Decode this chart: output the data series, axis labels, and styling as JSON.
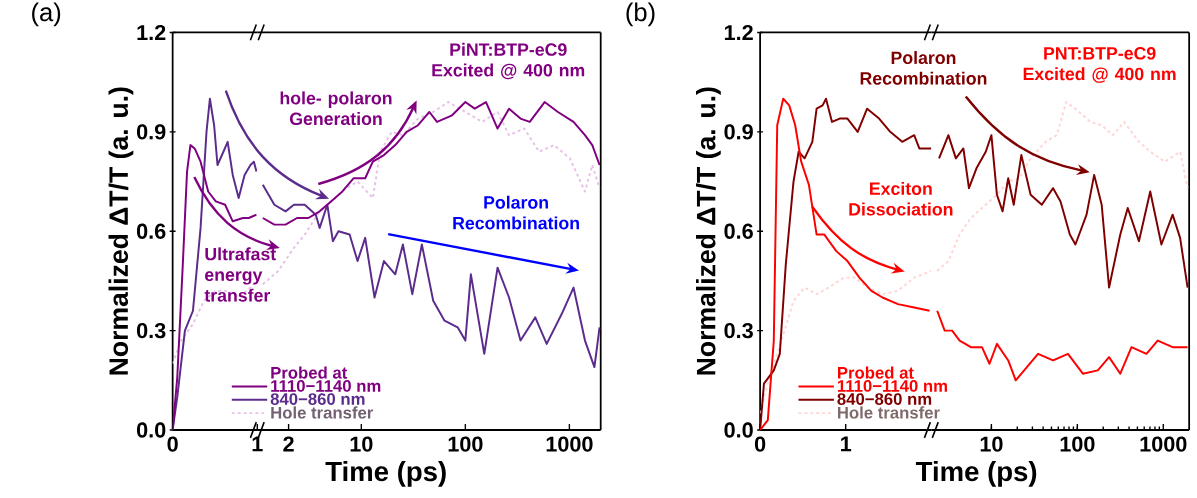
{
  "chart_data": [
    {
      "type": "line",
      "title": "(a)",
      "ylabel": "Normalized ΔT/T (a. u.)",
      "xlim": [
        0,
        1
      ],
      "ylim": [
        0,
        1.2
      ],
      "xticks": [
        0,
        1
      ],
      "yticks": [
        {
          "value": 0,
          "label": "0.0"
        },
        0.3,
        0.6,
        0.9,
        1.2
      ],
      "legend": "bottom",
      "legend_title": "Probed at",
      "series": [
        {
          "name": "1110−1140 nm",
          "color": "#800080",
          "x": [
            0,
            0.055,
            0.12,
            0.17,
            0.21,
            0.26,
            0.33,
            0.42,
            0.51,
            0.62,
            0.71,
            0.83,
            0.9,
            0.99
          ],
          "values": [
            0,
            0.16,
            0.5,
            0.78,
            0.86,
            0.85,
            0.81,
            0.72,
            0.69,
            0.68,
            0.63,
            0.64,
            0.64,
            0.65
          ]
        },
        {
          "name": "840−860 nm",
          "color": "#5b2c8c",
          "x": [
            0,
            0.055,
            0.145,
            0.24,
            0.33,
            0.4,
            0.44,
            0.49,
            0.53,
            0.6,
            0.65,
            0.71,
            0.78,
            0.85,
            0.92,
            0.96,
            0.99
          ],
          "values": [
            0,
            0.1,
            0.3,
            0.36,
            0.61,
            0.9,
            1.0,
            0.92,
            0.8,
            0.84,
            0.87,
            0.77,
            0.7,
            0.77,
            0.8,
            0.81,
            0.78
          ]
        },
        {
          "name": "Hole transfer",
          "color": "#e6c3e6",
          "line_style": "dashed",
          "x": [
            0,
            0.1,
            0.24,
            0.37,
            0.51,
            0.65,
            0.78,
            0.92,
            0.99
          ],
          "values": [
            0.2,
            0.27,
            0.32,
            0.39,
            0.42,
            0.42,
            0.4,
            0.43,
            0.45
          ]
        }
      ]
    },
    {
      "type": "line",
      "xlabel": "Time (ps)",
      "log": "x",
      "xlim": [
        1,
        2000
      ],
      "ylim": [
        0,
        1.2
      ],
      "xticks": [
        2,
        10,
        100,
        1000
      ],
      "tick_labels": "x",
      "annotations": [
        "PiNT:BTP-eC9 Excited @ 400 nm",
        "hole- polaron Generation",
        "Ultrafast energy transfer",
        "Polaron Recombination"
      ],
      "series": [
        {
          "color": "#800080",
          "x": [
            1.13,
            1.46,
            1.87,
            2.41,
            3.1,
            3.98,
            5.12,
            6.58,
            8.45,
            10.9,
            12.9,
            16.5,
            21.2,
            27.3,
            35.1,
            45.1,
            53.4,
            74.6,
            100,
            123,
            158,
            204,
            263,
            339,
            416,
            578,
            776,
            1096,
            1412,
            1660,
            1950
          ],
          "values": [
            0.64,
            0.62,
            0.62,
            0.64,
            0.64,
            0.66,
            0.69,
            0.72,
            0.76,
            0.76,
            0.81,
            0.83,
            0.86,
            0.9,
            0.92,
            0.96,
            0.93,
            0.95,
            0.99,
            0.97,
            0.99,
            0.91,
            0.97,
            0.94,
            0.93,
            0.99,
            0.96,
            0.93,
            0.89,
            0.86,
            0.8
          ]
        },
        {
          "color": "#5b2c8c",
          "x": [
            1.13,
            1.46,
            1.87,
            2.25,
            2.86,
            3.65,
            3.98,
            4.71,
            5.33,
            6.03,
            7.72,
            9.2,
            10.9,
            13.4,
            16.5,
            21.2,
            25.1,
            30.9,
            38.2,
            49.1,
            63.1,
            84.3,
            100,
            113,
            152,
            204,
            263,
            339,
            470,
            605,
            843,
            1096,
            1412,
            1740,
            1950
          ],
          "values": [
            0.74,
            0.68,
            0.66,
            0.68,
            0.68,
            0.65,
            0.61,
            0.68,
            0.57,
            0.6,
            0.59,
            0.51,
            0.58,
            0.4,
            0.51,
            0.47,
            0.56,
            0.41,
            0.56,
            0.39,
            0.33,
            0.31,
            0.27,
            0.47,
            0.23,
            0.49,
            0.4,
            0.27,
            0.34,
            0.26,
            0.35,
            0.43,
            0.27,
            0.19,
            0.31
          ]
        },
        {
          "color": "#e6c3e6",
          "line_style": "dashed",
          "x": [
            1.13,
            1.59,
            2.25,
            2.86,
            3.98,
            5.56,
            7.15,
            9.2,
            12.9,
            15.2,
            19.6,
            25.1,
            35.1,
            49.1,
            68.6,
            100,
            145,
            204,
            263,
            368,
            512,
            713,
            1010,
            1412,
            1660,
            1950
          ],
          "values": [
            0.44,
            0.48,
            0.55,
            0.59,
            0.66,
            0.7,
            0.73,
            0.75,
            0.7,
            0.84,
            0.9,
            0.89,
            0.94,
            0.96,
            0.99,
            0.96,
            0.93,
            0.96,
            0.89,
            0.91,
            0.84,
            0.86,
            0.82,
            0.72,
            0.8,
            0.73
          ]
        }
      ]
    },
    {
      "type": "line",
      "title": "(b)",
      "ylabel": "Normalized ΔT/T (a. u.)",
      "xlim": [
        0,
        2
      ],
      "ylim": [
        0,
        1.2
      ],
      "xticks": [
        0,
        1
      ],
      "yticks": [
        {
          "value": 0,
          "label": "0.0"
        },
        0.3,
        0.6,
        0.9,
        1.2
      ],
      "legend": "bottom right",
      "legend_title": "Probed at",
      "series": [
        {
          "name": "1110−1140 nm",
          "color": "#ff0000",
          "x": [
            0,
            0.09,
            0.16,
            0.2,
            0.27,
            0.34,
            0.41,
            0.48,
            0.57,
            0.66,
            0.75,
            0.89,
            1.02,
            1.16,
            1.3,
            1.43,
            1.61,
            1.8,
            1.98
          ],
          "values": [
            0,
            0.03,
            0.27,
            0.92,
            1.0,
            0.98,
            0.92,
            0.81,
            0.74,
            0.59,
            0.59,
            0.54,
            0.51,
            0.46,
            0.42,
            0.4,
            0.38,
            0.37,
            0.36
          ]
        },
        {
          "name": "840−860 nm",
          "color": "#800000",
          "x": [
            0,
            0.045,
            0.16,
            0.23,
            0.3,
            0.39,
            0.45,
            0.52,
            0.61,
            0.66,
            0.73,
            0.77,
            0.84,
            0.93,
            1.02,
            1.14,
            1.25,
            1.39,
            1.52,
            1.66,
            1.8,
            1.86,
            2.0
          ],
          "values": [
            0,
            0.14,
            0.18,
            0.23,
            0.5,
            0.75,
            0.84,
            0.82,
            0.87,
            0.97,
            0.98,
            1.0,
            0.93,
            0.94,
            0.94,
            0.9,
            0.97,
            0.94,
            0.9,
            0.87,
            0.89,
            0.85,
            0.85
          ]
        },
        {
          "name": "Hole transfer",
          "color": "#ffd5d5",
          "line_style": "dashed",
          "x": [
            0,
            0.11,
            0.25,
            0.39,
            0.52,
            0.66,
            0.8,
            0.98,
            1.11,
            1.25,
            1.43,
            1.61,
            1.8,
            2.0
          ],
          "values": [
            0.05,
            0.16,
            0.27,
            0.39,
            0.43,
            0.41,
            0.43,
            0.46,
            0.46,
            0.43,
            0.41,
            0.42,
            0.46,
            0.48
          ]
        }
      ]
    },
    {
      "type": "line",
      "xlabel": "Time (ps)",
      "log": "x",
      "xlim": [
        2,
        2000
      ],
      "ylim": [
        0,
        1.2
      ],
      "xticks": [
        10,
        100,
        1000
      ],
      "tick_labels": "x",
      "annotations": [
        "Polaron Recombination",
        "PNT:BTP-eC9 Excited @ 400 nm",
        "Exciton Dissociation"
      ],
      "series": [
        {
          "color": "#ff0000",
          "x": [
            2.34,
            2.86,
            3.49,
            4.27,
            5.77,
            7.77,
            9.5,
            11.6,
            15.7,
            19.2,
            25.9,
            34.9,
            52.2,
            77.8,
            116,
            173,
            234,
            316,
            427,
            637,
            861,
            1285,
            1919
          ],
          "values": [
            0.36,
            0.3,
            0.3,
            0.27,
            0.25,
            0.25,
            0.2,
            0.26,
            0.21,
            0.15,
            0.19,
            0.23,
            0.21,
            0.23,
            0.17,
            0.18,
            0.22,
            0.17,
            0.25,
            0.23,
            0.27,
            0.25,
            0.25
          ]
        },
        {
          "color": "#800000",
          "x": [
            2.46,
            3.16,
            3.86,
            4.72,
            5.48,
            6.7,
            8.6,
            10,
            11.6,
            13.5,
            15.7,
            18.2,
            22.3,
            28.6,
            38.6,
            52.2,
            63.7,
            81.8,
            95,
            128,
            157,
            192,
            234,
            316,
            386,
            521,
            705,
            951,
            1285,
            1570,
            1919
          ],
          "values": [
            0.82,
            0.89,
            0.82,
            0.85,
            0.73,
            0.79,
            0.84,
            0.89,
            0.71,
            0.66,
            0.76,
            0.68,
            0.83,
            0.71,
            0.68,
            0.73,
            0.69,
            0.59,
            0.56,
            0.65,
            0.77,
            0.68,
            0.43,
            0.59,
            0.67,
            0.57,
            0.72,
            0.56,
            0.65,
            0.58,
            0.43
          ]
        },
        {
          "color": "#ffd5d5",
          "line_style": "dashed",
          "x": [
            2.34,
            3.16,
            4.27,
            5.77,
            7.77,
            11.6,
            15.7,
            21.2,
            28.6,
            42.7,
            57.6,
            74.2,
            95,
            142,
            192,
            259,
            349,
            521,
            705,
            1044,
            1570,
            1919
          ],
          "values": [
            0.48,
            0.51,
            0.59,
            0.64,
            0.67,
            0.71,
            0.75,
            0.76,
            0.82,
            0.87,
            0.89,
            0.99,
            0.97,
            0.93,
            0.92,
            0.89,
            0.93,
            0.87,
            0.84,
            0.81,
            0.84,
            0.73
          ]
        }
      ]
    }
  ]
}
